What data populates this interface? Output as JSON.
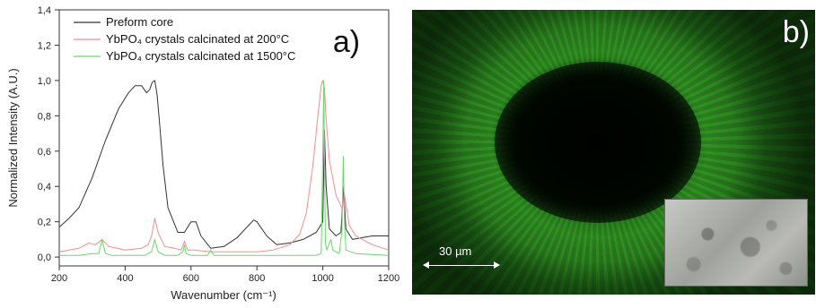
{
  "panel_a": {
    "label": "a)",
    "chart_data": {
      "type": "line",
      "xlabel": "Wavenumber (cm⁻¹)",
      "ylabel": "Normalized Intensity (A.U.)",
      "xlim": [
        200,
        1200
      ],
      "ylim": [
        -0.05,
        1.4
      ],
      "x_ticks": [
        "200",
        "400",
        "600",
        "800",
        "1000",
        "1200"
      ],
      "y_ticks": [
        "0,0",
        "0,2",
        "0,4",
        "0,6",
        "0,8",
        "1,0",
        "1,2",
        "1,4"
      ],
      "legend_position": "top-left",
      "series": [
        {
          "name": "Preform core",
          "color": "#333333",
          "x": [
            200,
            230,
            260,
            300,
            340,
            380,
            410,
            430,
            450,
            465,
            475,
            482,
            490,
            497,
            505,
            515,
            530,
            560,
            580,
            600,
            615,
            630,
            660,
            700,
            740,
            770,
            790,
            800,
            830,
            860,
            900,
            940,
            980,
            1000,
            1005,
            1010,
            1020,
            1040,
            1055,
            1063,
            1070,
            1090,
            1120,
            1150,
            1180,
            1200
          ],
          "y": [
            0.17,
            0.22,
            0.28,
            0.45,
            0.66,
            0.84,
            0.93,
            0.97,
            0.97,
            0.93,
            0.95,
            0.99,
            1.0,
            0.92,
            0.75,
            0.52,
            0.28,
            0.14,
            0.14,
            0.2,
            0.2,
            0.12,
            0.05,
            0.06,
            0.11,
            0.17,
            0.21,
            0.2,
            0.12,
            0.07,
            0.08,
            0.1,
            0.14,
            0.2,
            0.72,
            0.4,
            0.16,
            0.12,
            0.14,
            0.4,
            0.16,
            0.1,
            0.11,
            0.12,
            0.12,
            0.12
          ]
        },
        {
          "name": "YbPO₄ crystals calcinated at 200°C",
          "color": "#f08f8f",
          "x": [
            200,
            230,
            260,
            290,
            310,
            330,
            350,
            400,
            450,
            470,
            480,
            490,
            500,
            520,
            550,
            570,
            580,
            590,
            610,
            660,
            700,
            750,
            800,
            850,
            900,
            930,
            950,
            970,
            985,
            995,
            1000,
            1005,
            1010,
            1020,
            1040,
            1060,
            1065,
            1080,
            1100,
            1150,
            1200
          ],
          "y": [
            0.03,
            0.04,
            0.05,
            0.08,
            0.07,
            0.1,
            0.06,
            0.04,
            0.05,
            0.07,
            0.12,
            0.22,
            0.14,
            0.06,
            0.05,
            0.04,
            0.09,
            0.04,
            0.04,
            0.03,
            0.03,
            0.03,
            0.03,
            0.04,
            0.07,
            0.13,
            0.25,
            0.52,
            0.8,
            0.97,
            1.0,
            0.96,
            0.78,
            0.55,
            0.35,
            0.27,
            0.36,
            0.18,
            0.12,
            0.07,
            0.04
          ]
        },
        {
          "name": "YbPO₄ crystals calcinated at 1500°C",
          "color": "#6ad86a",
          "x": [
            200,
            260,
            300,
            320,
            330,
            340,
            360,
            400,
            460,
            480,
            490,
            500,
            520,
            560,
            575,
            580,
            585,
            600,
            650,
            660,
            670,
            700,
            800,
            900,
            980,
            995,
            1000,
            1003,
            1005,
            1008,
            1012,
            1020,
            1025,
            1030,
            1050,
            1058,
            1062,
            1066,
            1070,
            1100,
            1200
          ],
          "y": [
            0.01,
            0.01,
            0.02,
            0.02,
            0.1,
            0.02,
            0.01,
            0.01,
            0.01,
            0.03,
            0.1,
            0.03,
            0.01,
            0.01,
            0.03,
            0.07,
            0.02,
            0.01,
            0.01,
            0.04,
            0.01,
            0.01,
            0.01,
            0.01,
            0.01,
            0.02,
            0.6,
            1.0,
            0.6,
            0.08,
            0.04,
            0.08,
            0.1,
            0.04,
            0.02,
            0.15,
            0.57,
            0.2,
            0.04,
            0.02,
            0.01
          ]
        }
      ]
    }
  },
  "panel_b": {
    "label": "b)",
    "scale_bar_text": "30 µm"
  }
}
